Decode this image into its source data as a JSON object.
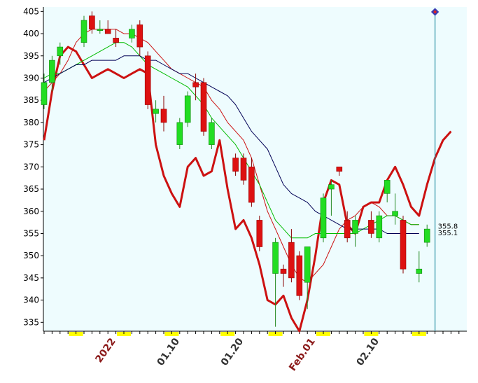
{
  "chart_data": {
    "type": "candlestick",
    "ylim": [
      333,
      406
    ],
    "y_ticks": [
      335,
      340,
      345,
      350,
      355,
      360,
      365,
      370,
      375,
      380,
      385,
      390,
      395,
      400,
      405
    ],
    "x_labels": [
      {
        "text": "2022",
        "index": 9,
        "color": "#8b1a1a"
      },
      {
        "text": "01.10",
        "index": 17,
        "color": "#333333"
      },
      {
        "text": "01.20",
        "index": 25,
        "color": "#333333"
      },
      {
        "text": "Feb.01",
        "index": 34,
        "color": "#8b1a1a"
      },
      {
        "text": "02.10",
        "index": 42,
        "color": "#333333"
      }
    ],
    "candles": [
      {
        "o": 384,
        "h": 391,
        "l": 383,
        "c": 389
      },
      {
        "o": 389,
        "h": 395,
        "l": 387,
        "c": 394
      },
      {
        "o": 395,
        "h": 398,
        "l": 393,
        "c": 397
      },
      {
        "o": null
      },
      {
        "o": null
      },
      {
        "o": 398,
        "h": 404,
        "l": 397,
        "c": 403
      },
      {
        "o": 404,
        "h": 405,
        "l": 400,
        "c": 401
      },
      {
        "o": 401,
        "h": 403,
        "l": 400,
        "c": 401
      },
      {
        "o": 401,
        "h": 403,
        "l": 400,
        "c": 400
      },
      {
        "o": 399,
        "h": 401,
        "l": 397,
        "c": 398
      },
      {
        "o": null
      },
      {
        "o": 399,
        "h": 402,
        "l": 398,
        "c": 401
      },
      {
        "o": 402,
        "h": 403,
        "l": 395,
        "c": 397
      },
      {
        "o": 395,
        "h": 396,
        "l": 383,
        "c": 384
      },
      {
        "o": 382,
        "h": 385,
        "l": 380,
        "c": 383
      },
      {
        "o": 383,
        "h": 386,
        "l": 378,
        "c": 380
      },
      {
        "o": null
      },
      {
        "o": 375,
        "h": 381,
        "l": 374,
        "c": 380
      },
      {
        "o": 380,
        "h": 387,
        "l": 379,
        "c": 386
      },
      {
        "o": 389,
        "h": 391,
        "l": 385,
        "c": 388
      },
      {
        "o": 389,
        "h": 390,
        "l": 377,
        "c": 378
      },
      {
        "o": 375,
        "h": 381,
        "l": 374,
        "c": 380
      },
      {
        "o": null
      },
      {
        "o": null
      },
      {
        "o": 372,
        "h": 373,
        "l": 368,
        "c": 369
      },
      {
        "o": 372,
        "h": 373,
        "l": 366,
        "c": 367
      },
      {
        "o": 370,
        "h": 372,
        "l": 361,
        "c": 362
      },
      {
        "o": 358,
        "h": 359,
        "l": 351,
        "c": 352
      },
      {
        "o": null
      },
      {
        "o": 346,
        "h": 354,
        "l": 334,
        "c": 353
      },
      {
        "o": 347,
        "h": 348,
        "l": 343,
        "c": 346
      },
      {
        "o": 353,
        "h": 356,
        "l": 344,
        "c": 345
      },
      {
        "o": 350,
        "h": 351,
        "l": 340,
        "c": 341
      },
      {
        "o": 344,
        "h": 352,
        "l": 338,
        "c": 352
      },
      {
        "o": null
      },
      {
        "o": 354,
        "h": 364,
        "l": 353,
        "c": 363
      },
      {
        "o": 365,
        "h": 367,
        "l": 359,
        "c": 366
      },
      {
        "o": 370,
        "h": 370,
        "l": 368,
        "c": 369
      },
      {
        "o": 358,
        "h": 360,
        "l": 353,
        "c": 354
      },
      {
        "o": 355,
        "h": 359,
        "l": 352,
        "c": 358
      },
      {
        "o": null
      },
      {
        "o": 358,
        "h": 360,
        "l": 354,
        "c": 355
      },
      {
        "o": 354,
        "h": 360,
        "l": 353,
        "c": 359
      },
      {
        "o": 364,
        "h": 367,
        "l": 362,
        "c": 367
      },
      {
        "o": 359,
        "h": 364,
        "l": 357,
        "c": 360
      },
      {
        "o": 358,
        "h": 359,
        "l": 346,
        "c": 347
      },
      {
        "o": null
      },
      {
        "o": 346,
        "h": 351,
        "l": 344,
        "c": 347
      },
      {
        "o": 353,
        "h": 357,
        "l": 352,
        "c": 356
      }
    ],
    "overlays": [
      {
        "name": "",
        "color": "#cc1111",
        "width": 3,
        "values": [
          376,
          387,
          395,
          397,
          396,
          393,
          390,
          391,
          392,
          391,
          390,
          391,
          392,
          391,
          375,
          368,
          364,
          361,
          370,
          372,
          368,
          369,
          376,
          365,
          356,
          358,
          354,
          348,
          340,
          339,
          341,
          336,
          333,
          340,
          350,
          362,
          367,
          366,
          357,
          355,
          361,
          362,
          362,
          367,
          370,
          366,
          361,
          359,
          366,
          372,
          376,
          378
        ]
      },
      {
        "name": "",
        "color": "#cc1111",
        "width": 1,
        "values": [
          387,
          389,
          391,
          394,
          398,
          400,
          401,
          401,
          401,
          401,
          400,
          400,
          399,
          398,
          396,
          394,
          392,
          391,
          390,
          389,
          388,
          385,
          383,
          380,
          378,
          376,
          372,
          366,
          360,
          356,
          352,
          348,
          345,
          344,
          346,
          348,
          352,
          356,
          358,
          359,
          361,
          362,
          361,
          359,
          359,
          358,
          357,
          357
        ]
      },
      {
        "name": "",
        "color": "#00bb00",
        "width": 1,
        "values": [
          390,
          391,
          391,
          392,
          393,
          394,
          395,
          396,
          397,
          398,
          398,
          397,
          395,
          393,
          392,
          391,
          390,
          389,
          388,
          386,
          384,
          381,
          379,
          377,
          375,
          372,
          369,
          366,
          362,
          358,
          356,
          354,
          354,
          354,
          355,
          355,
          355,
          355,
          355,
          355,
          356,
          357,
          358,
          359,
          359,
          358,
          357,
          357
        ]
      },
      {
        "name": "",
        "color": "#000055",
        "width": 1,
        "values": [
          389,
          390,
          391,
          392,
          393,
          393,
          394,
          394,
          394,
          394,
          395,
          395,
          395,
          394,
          394,
          393,
          392,
          391,
          391,
          390,
          389,
          388,
          387,
          386,
          384,
          381,
          378,
          376,
          374,
          370,
          366,
          364,
          363,
          362,
          360,
          359,
          358,
          357,
          356,
          356,
          356,
          356,
          356,
          355,
          355,
          355,
          355,
          355
        ]
      }
    ],
    "price_labels": [
      "355.8",
      "355.1"
    ],
    "colors": {
      "up": "#22dd22",
      "down": "#dd1111",
      "plot_bg": "#eefcfe",
      "marker": "#3b3bb0",
      "vline": "#2a8fa3"
    },
    "highlight_band": "#ffff00"
  }
}
